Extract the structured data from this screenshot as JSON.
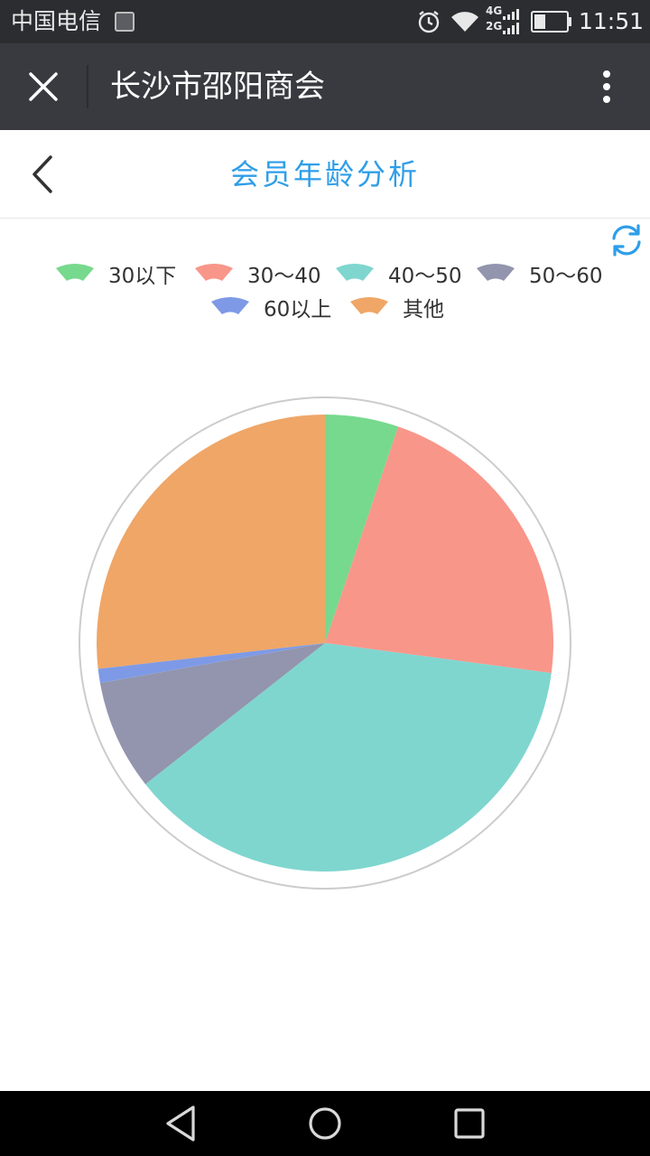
{
  "status_bar": {
    "carrier": "中国电信",
    "network_4g": "4G",
    "network_2g": "2G",
    "time": "11:51"
  },
  "title_bar": {
    "title": "长沙市邵阳商会"
  },
  "header": {
    "title": "会员年龄分析"
  },
  "colors": {
    "accent": "#2f9ee8",
    "title_bar": "#393a3f",
    "status_bar": "#2b2d30"
  },
  "legend": [
    {
      "label": "30以下",
      "color": "#77d98d"
    },
    {
      "label": "30～40",
      "color": "#f8968a"
    },
    {
      "label": "40～50",
      "color": "#7fd6cf"
    },
    {
      "label": "50～60",
      "color": "#9295ad"
    },
    {
      "label": "60以上",
      "color": "#7e9ae6"
    },
    {
      "label": "其他",
      "color": "#efa667"
    }
  ],
  "chart_data": {
    "type": "pie",
    "categories": [
      "30以下",
      "30～40",
      "40～50",
      "50～60",
      "60以上",
      "其他"
    ],
    "values": [
      5.2,
      21.9,
      37.3,
      7.8,
      1.0,
      26.8
    ],
    "colors": [
      "#77d98d",
      "#f8968a",
      "#7fd6cf",
      "#9295ad",
      "#7e9ae6",
      "#efa667"
    ],
    "start_angle": "12 o'clock, clockwise",
    "legend_position": "top-center",
    "outer_ring": true
  }
}
